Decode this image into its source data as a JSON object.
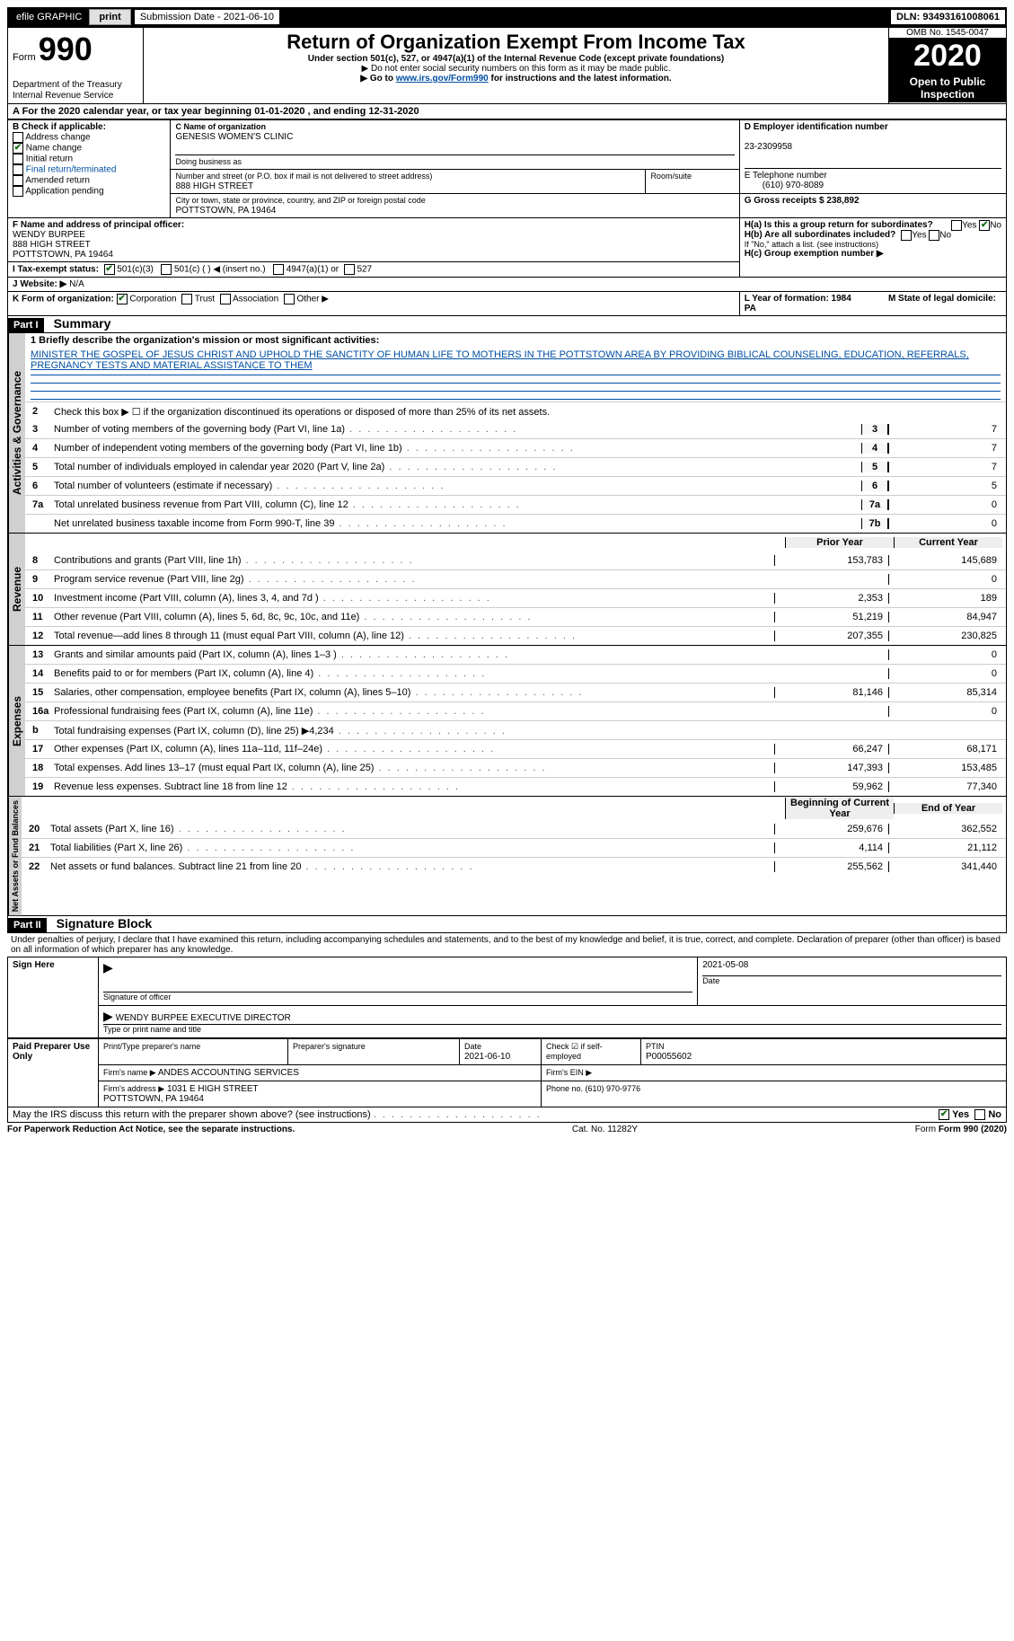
{
  "topbar": {
    "efile_label": "efile GRAPHIC",
    "print_btn": "print",
    "sub_date_label": "Submission Date - 2021-06-10",
    "dln": "DLN: 93493161008061"
  },
  "header": {
    "form_word": "Form",
    "form_num": "990",
    "dept": "Department of the Treasury\nInternal Revenue Service",
    "title": "Return of Organization Exempt From Income Tax",
    "subtitle": "Under section 501(c), 527, or 4947(a)(1) of the Internal Revenue Code (except private foundations)",
    "note1": "▶ Do not enter social security numbers on this form as it may be made public.",
    "note2_pre": "▶ Go to ",
    "note2_link": "www.irs.gov/Form990",
    "note2_post": " for instructions and the latest information.",
    "omb": "OMB No. 1545-0047",
    "year": "2020",
    "otp": "Open to Public Inspection"
  },
  "sectionA": {
    "line": "A For the 2020 calendar year, or tax year beginning 01-01-2020   , and ending 12-31-2020"
  },
  "boxB": {
    "label": "B Check if applicable:",
    "addr_change": "Address change",
    "name_change": "Name change",
    "initial": "Initial return",
    "final": "Final return/terminated",
    "amended": "Amended return",
    "app_pending": "Application pending"
  },
  "boxC": {
    "label": "C Name of organization",
    "org": "GENESIS WOMEN'S CLINIC",
    "dba": "Doing business as",
    "street_label": "Number and street (or P.O. box if mail is not delivered to street address)",
    "room_label": "Room/suite",
    "street": "888 HIGH STREET",
    "city_label": "City or town, state or province, country, and ZIP or foreign postal code",
    "city": "POTTSTOWN, PA  19464"
  },
  "boxD": {
    "label": "D Employer identification number",
    "ein": "23-2309958"
  },
  "boxE": {
    "label": "E Telephone number",
    "phone": "(610) 970-8089"
  },
  "boxG": {
    "label": "G Gross receipts $ 238,892"
  },
  "boxF": {
    "label": "F Name and address of principal officer:",
    "name": "WENDY BURPEE",
    "addr1": "888 HIGH STREET",
    "addr2": "POTTSTOWN, PA  19464"
  },
  "boxH": {
    "a_label": "H(a)  Is this a group return for subordinates?",
    "b_label": "H(b)  Are all subordinates included?",
    "b_note": "If \"No,\" attach a list. (see instructions)",
    "c_label": "H(c)  Group exemption number ▶",
    "yes": "Yes",
    "no": "No"
  },
  "boxI": {
    "label": "I  Tax-exempt status:",
    "c3": "501(c)(3)",
    "c": "501(c) (  ) ◀ (insert no.)",
    "a1": "4947(a)(1) or",
    "527": "527"
  },
  "boxJ": {
    "label": "J  Website: ▶",
    "val": "N/A"
  },
  "boxK": {
    "label": "K Form of organization:",
    "corp": "Corporation",
    "trust": "Trust",
    "assoc": "Association",
    "other": "Other ▶"
  },
  "boxL": {
    "label": "L Year of formation: 1984"
  },
  "boxM": {
    "label": "M State of legal domicile: PA"
  },
  "part1": {
    "hdr": "Part I",
    "title": "Summary",
    "sec_gov": "Activities & Governance",
    "sec_rev": "Revenue",
    "sec_exp": "Expenses",
    "sec_net": "Net Assets or Fund Balances",
    "l1_label": "1  Briefly describe the organization's mission or most significant activities:",
    "l1_text": "MINISTER THE GOSPEL OF JESUS CHRIST AND UPHOLD THE SANCTITY OF HUMAN LIFE TO MOTHERS IN THE POTTSTOWN AREA BY PROVIDING BIBLICAL COUNSELING, EDUCATION, REFERRALS, PREGNANCY TESTS AND MATERIAL ASSISTANCE TO THEM",
    "l2": "Check this box ▶ ☐  if the organization discontinued its operations or disposed of more than 25% of its net assets.",
    "rows_gov": [
      {
        "n": "3",
        "t": "Number of voting members of the governing body (Part VI, line 1a)",
        "b": "3",
        "v": "7"
      },
      {
        "n": "4",
        "t": "Number of independent voting members of the governing body (Part VI, line 1b)",
        "b": "4",
        "v": "7"
      },
      {
        "n": "5",
        "t": "Total number of individuals employed in calendar year 2020 (Part V, line 2a)",
        "b": "5",
        "v": "7"
      },
      {
        "n": "6",
        "t": "Total number of volunteers (estimate if necessary)",
        "b": "6",
        "v": "5"
      },
      {
        "n": "7a",
        "t": "Total unrelated business revenue from Part VIII, column (C), line 12",
        "b": "7a",
        "v": "0"
      },
      {
        "n": "",
        "t": "Net unrelated business taxable income from Form 990-T, line 39",
        "b": "7b",
        "v": "0"
      }
    ],
    "col_prior": "Prior Year",
    "col_current": "Current Year",
    "rows_rev": [
      {
        "n": "8",
        "t": "Contributions and grants (Part VIII, line 1h)",
        "p": "153,783",
        "c": "145,689"
      },
      {
        "n": "9",
        "t": "Program service revenue (Part VIII, line 2g)",
        "p": "",
        "c": "0"
      },
      {
        "n": "10",
        "t": "Investment income (Part VIII, column (A), lines 3, 4, and 7d )",
        "p": "2,353",
        "c": "189"
      },
      {
        "n": "11",
        "t": "Other revenue (Part VIII, column (A), lines 5, 6d, 8c, 9c, 10c, and 11e)",
        "p": "51,219",
        "c": "84,947"
      },
      {
        "n": "12",
        "t": "Total revenue—add lines 8 through 11 (must equal Part VIII, column (A), line 12)",
        "p": "207,355",
        "c": "230,825"
      }
    ],
    "rows_exp": [
      {
        "n": "13",
        "t": "Grants and similar amounts paid (Part IX, column (A), lines 1–3 )",
        "p": "",
        "c": "0"
      },
      {
        "n": "14",
        "t": "Benefits paid to or for members (Part IX, column (A), line 4)",
        "p": "",
        "c": "0"
      },
      {
        "n": "15",
        "t": "Salaries, other compensation, employee benefits (Part IX, column (A), lines 5–10)",
        "p": "81,146",
        "c": "85,314"
      },
      {
        "n": "16a",
        "t": "Professional fundraising fees (Part IX, column (A), line 11e)",
        "p": "",
        "c": "0"
      },
      {
        "n": "b",
        "t": "Total fundraising expenses (Part IX, column (D), line 25) ▶4,234",
        "p": "SHADE",
        "c": "SHADE"
      },
      {
        "n": "17",
        "t": "Other expenses (Part IX, column (A), lines 11a–11d, 11f–24e)",
        "p": "66,247",
        "c": "68,171"
      },
      {
        "n": "18",
        "t": "Total expenses. Add lines 13–17 (must equal Part IX, column (A), line 25)",
        "p": "147,393",
        "c": "153,485"
      },
      {
        "n": "19",
        "t": "Revenue less expenses. Subtract line 18 from line 12",
        "p": "59,962",
        "c": "77,340"
      }
    ],
    "col_begin": "Beginning of Current Year",
    "col_end": "End of Year",
    "rows_net": [
      {
        "n": "20",
        "t": "Total assets (Part X, line 16)",
        "p": "259,676",
        "c": "362,552"
      },
      {
        "n": "21",
        "t": "Total liabilities (Part X, line 26)",
        "p": "4,114",
        "c": "21,112"
      },
      {
        "n": "22",
        "t": "Net assets or fund balances. Subtract line 21 from line 20",
        "p": "255,562",
        "c": "341,440"
      }
    ]
  },
  "part2": {
    "hdr": "Part II",
    "title": "Signature Block",
    "decl": "Under penalties of perjury, I declare that I have examined this return, including accompanying schedules and statements, and to the best of my knowledge and belief, it is true, correct, and complete. Declaration of preparer (other than officer) is based on all information of which preparer has any knowledge."
  },
  "sign": {
    "here": "Sign Here",
    "sig_label": "Signature of officer",
    "date_label": "Date",
    "date": "2021-05-08",
    "name": "WENDY BURPEE  EXECUTIVE DIRECTOR",
    "name_label": "Type or print name and title"
  },
  "paid": {
    "title": "Paid Preparer Use Only",
    "c1": "Print/Type preparer's name",
    "c2": "Preparer's signature",
    "c3_label": "Date",
    "c3": "2021-06-10",
    "c4_label": "Check ☑ if self-employed",
    "c5_label": "PTIN",
    "c5": "P00055602",
    "firm_name_label": "Firm's name    ▶",
    "firm_name": "ANDES ACCOUNTING SERVICES",
    "firm_ein_label": "Firm's EIN ▶",
    "firm_addr_label": "Firm's address ▶",
    "firm_addr": "1031 E HIGH STREET\nPOTTSTOWN, PA  19464",
    "firm_phone_label": "Phone no. (610) 970-9776"
  },
  "bottom": {
    "discuss": "May the IRS discuss this return with the preparer shown above? (see instructions)",
    "yes": "Yes",
    "no": "No",
    "pra": "For Paperwork Reduction Act Notice, see the separate instructions.",
    "cat": "Cat. No. 11282Y",
    "form": "Form 990 (2020)"
  }
}
